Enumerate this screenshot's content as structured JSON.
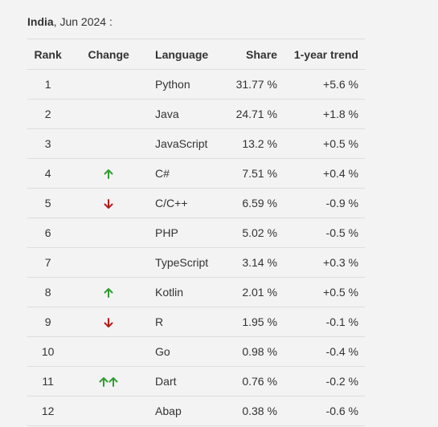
{
  "caption": {
    "country": "India",
    "rest": ", Jun 2024 :"
  },
  "headers": {
    "rank": "Rank",
    "change": "Change",
    "language": "Language",
    "share": "Share",
    "trend": "1-year trend"
  },
  "colors": {
    "up": "#2e9e2e",
    "down": "#b31b1b"
  },
  "rows": [
    {
      "rank": "1",
      "change": "none",
      "language": "Python",
      "share": "31.77 %",
      "trend": "+5.6 %"
    },
    {
      "rank": "2",
      "change": "none",
      "language": "Java",
      "share": "24.71 %",
      "trend": "+1.8 %"
    },
    {
      "rank": "3",
      "change": "none",
      "language": "JavaScript",
      "share": "13.2 %",
      "trend": "+0.5 %"
    },
    {
      "rank": "4",
      "change": "up",
      "language": "C#",
      "share": "7.51 %",
      "trend": "+0.4 %"
    },
    {
      "rank": "5",
      "change": "down",
      "language": "C/C++",
      "share": "6.59 %",
      "trend": "-0.9 %"
    },
    {
      "rank": "6",
      "change": "none",
      "language": "PHP",
      "share": "5.02 %",
      "trend": "-0.5 %"
    },
    {
      "rank": "7",
      "change": "none",
      "language": "TypeScript",
      "share": "3.14 %",
      "trend": "+0.3 %"
    },
    {
      "rank": "8",
      "change": "up",
      "language": "Kotlin",
      "share": "2.01 %",
      "trend": "+0.5 %"
    },
    {
      "rank": "9",
      "change": "down",
      "language": "R",
      "share": "1.95 %",
      "trend": "-0.1 %"
    },
    {
      "rank": "10",
      "change": "none",
      "language": "Go",
      "share": "0.98 %",
      "trend": "-0.4 %"
    },
    {
      "rank": "11",
      "change": "double-up",
      "language": "Dart",
      "share": "0.76 %",
      "trend": "-0.2 %"
    },
    {
      "rank": "12",
      "change": "none",
      "language": "Abap",
      "share": "0.38 %",
      "trend": "-0.6 %"
    }
  ]
}
